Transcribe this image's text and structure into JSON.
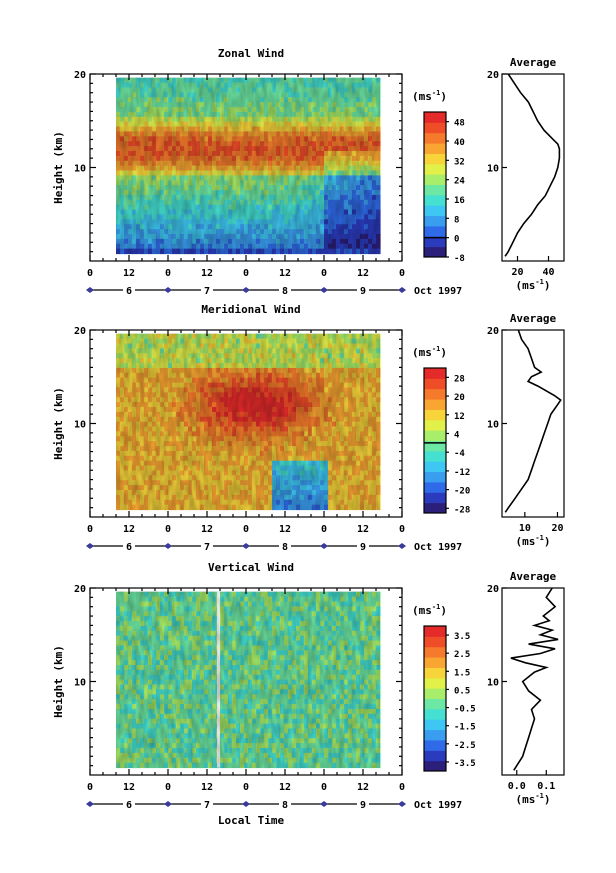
{
  "chart_data": [
    {
      "type": "heatmap",
      "title": "Zonal Wind",
      "ylabel": "Height (km)",
      "ylim": [
        0,
        20
      ],
      "yticks": [
        {
          "value": 10,
          "label": "10"
        },
        {
          "value": 20,
          "label": "20"
        }
      ],
      "xticks": [
        "0",
        "12",
        "0",
        "12",
        "0",
        "12",
        "0",
        "12",
        "0"
      ],
      "date_ticks": [
        "6",
        "7",
        "8",
        "9"
      ],
      "date_label": "Oct 1997",
      "colorbar": {
        "unit_prefix": "(ms",
        "unit_exp": "-1",
        "unit_suffix": ")",
        "range": [
          -8,
          52
        ],
        "ticks": [
          {
            "value": 48,
            "label": "48"
          },
          {
            "value": 40,
            "label": "40"
          },
          {
            "value": 32,
            "label": "32"
          },
          {
            "value": 24,
            "label": "24"
          },
          {
            "value": 16,
            "label": "16"
          },
          {
            "value": 8,
            "label": "8"
          },
          {
            "value": 0,
            "label": "0"
          },
          {
            "value": -8,
            "label": "-8"
          }
        ],
        "zero_line": 0
      },
      "field": {
        "jet_core_km": 12,
        "jet_value": 44,
        "surface_value": 2,
        "top_value": 16
      },
      "average_profile": {
        "title": "Average",
        "xlabel_prefix": "(ms",
        "xlabel_exp": "-1",
        "xlabel_suffix": ")",
        "xlim": [
          10,
          50
        ],
        "xticks": [
          {
            "value": 20,
            "label": "20"
          },
          {
            "value": 40,
            "label": "40"
          }
        ],
        "height_km": [
          0.5,
          1,
          2,
          3,
          4,
          5,
          6,
          7,
          8,
          9,
          10,
          11,
          12,
          12.5,
          13,
          14,
          15,
          16,
          17,
          18,
          19,
          20
        ],
        "values": [
          12,
          14,
          17,
          20,
          24,
          29,
          33,
          38,
          41,
          44,
          46,
          47,
          47,
          46,
          43,
          37,
          33,
          30,
          27,
          22,
          18,
          14
        ]
      }
    },
    {
      "type": "heatmap",
      "title": "Meridional Wind",
      "ylabel": "Height (km)",
      "ylim": [
        0,
        20
      ],
      "yticks": [
        {
          "value": 10,
          "label": "10"
        },
        {
          "value": 20,
          "label": "20"
        }
      ],
      "xticks": [
        "0",
        "12",
        "0",
        "12",
        "0",
        "12",
        "0",
        "12",
        "0"
      ],
      "date_ticks": [
        "6",
        "7",
        "8",
        "9"
      ],
      "date_label": "Oct 1997",
      "colorbar": {
        "unit_prefix": "(ms",
        "unit_exp": "-1",
        "unit_suffix": ")",
        "range": [
          -30,
          32
        ],
        "ticks": [
          {
            "value": 28,
            "label": "28"
          },
          {
            "value": 20,
            "label": "20"
          },
          {
            "value": 12,
            "label": "12"
          },
          {
            "value": 4,
            "label": "4"
          },
          {
            "value": -4,
            "label": "-4"
          },
          {
            "value": -12,
            "label": "-12"
          },
          {
            "value": -20,
            "label": "-20"
          },
          {
            "value": -28,
            "label": "-28"
          }
        ],
        "zero_line": 0
      },
      "field": {
        "core_km": 12,
        "core_value": 26,
        "surface_value": 6,
        "top_value": 10
      },
      "average_profile": {
        "title": "Average",
        "xlabel_prefix": "(ms",
        "xlabel_exp": "-1",
        "xlabel_suffix": ")",
        "xlim": [
          3,
          22
        ],
        "xticks": [
          {
            "value": 10,
            "label": "10"
          },
          {
            "value": 20,
            "label": "20"
          }
        ],
        "height_km": [
          0.5,
          1,
          2,
          3,
          4,
          5,
          6,
          7,
          8,
          9,
          10,
          11,
          12,
          12.5,
          13,
          14,
          14.5,
          15,
          15.5,
          16,
          17,
          18,
          19,
          20
        ],
        "values": [
          4,
          5,
          7,
          9,
          11,
          12,
          13,
          14,
          15,
          16,
          17,
          18,
          20,
          21,
          19,
          14,
          11,
          12,
          15,
          13,
          12,
          11,
          9,
          8
        ]
      }
    },
    {
      "type": "heatmap",
      "title": "Vertical Wind",
      "ylabel": "Height (km)",
      "xlabel": "Local Time",
      "ylim": [
        0,
        20
      ],
      "yticks": [
        {
          "value": 10,
          "label": "10"
        },
        {
          "value": 20,
          "label": "20"
        }
      ],
      "xticks": [
        "0",
        "12",
        "0",
        "12",
        "0",
        "12",
        "0",
        "12",
        "0"
      ],
      "date_ticks": [
        "6",
        "7",
        "8",
        "9"
      ],
      "date_label": "Oct 1997",
      "colorbar": {
        "unit_prefix": "(ms",
        "unit_exp": "-1",
        "unit_suffix": ")",
        "range": [
          -4,
          4
        ],
        "ticks": [
          {
            "value": 3.5,
            "label": "3.5"
          },
          {
            "value": 2.5,
            "label": "2.5"
          },
          {
            "value": 1.5,
            "label": "1.5"
          },
          {
            "value": 0.5,
            "label": "0.5"
          },
          {
            "value": -0.5,
            "label": "-0.5"
          },
          {
            "value": -1.5,
            "label": "-1.5"
          },
          {
            "value": -2.5,
            "label": "-2.5"
          },
          {
            "value": -3.5,
            "label": "-3.5"
          }
        ],
        "zero_line": null
      },
      "field": {
        "mean_value": -0.3
      },
      "average_profile": {
        "title": "Average",
        "xlabel_prefix": "(ms",
        "xlabel_exp": "-1",
        "xlabel_suffix": ")",
        "xlim": [
          -0.05,
          0.16
        ],
        "xticks": [
          {
            "value": 0.0,
            "label": "0.0"
          },
          {
            "value": 0.1,
            "label": "0.1"
          }
        ],
        "height_km": [
          0.5,
          1,
          2,
          3,
          4,
          5,
          6,
          7,
          8,
          9,
          10,
          11,
          11.5,
          12,
          12.5,
          13,
          13.5,
          14,
          14.5,
          15,
          15.5,
          16,
          16.5,
          17,
          18,
          19,
          20
        ],
        "values": [
          -0.01,
          0.0,
          0.02,
          0.03,
          0.04,
          0.05,
          0.06,
          0.05,
          0.08,
          0.04,
          0.02,
          0.06,
          0.1,
          0.03,
          -0.02,
          0.08,
          0.13,
          0.04,
          0.14,
          0.08,
          0.12,
          0.06,
          0.11,
          0.09,
          0.13,
          0.1,
          0.12
        ]
      }
    }
  ]
}
